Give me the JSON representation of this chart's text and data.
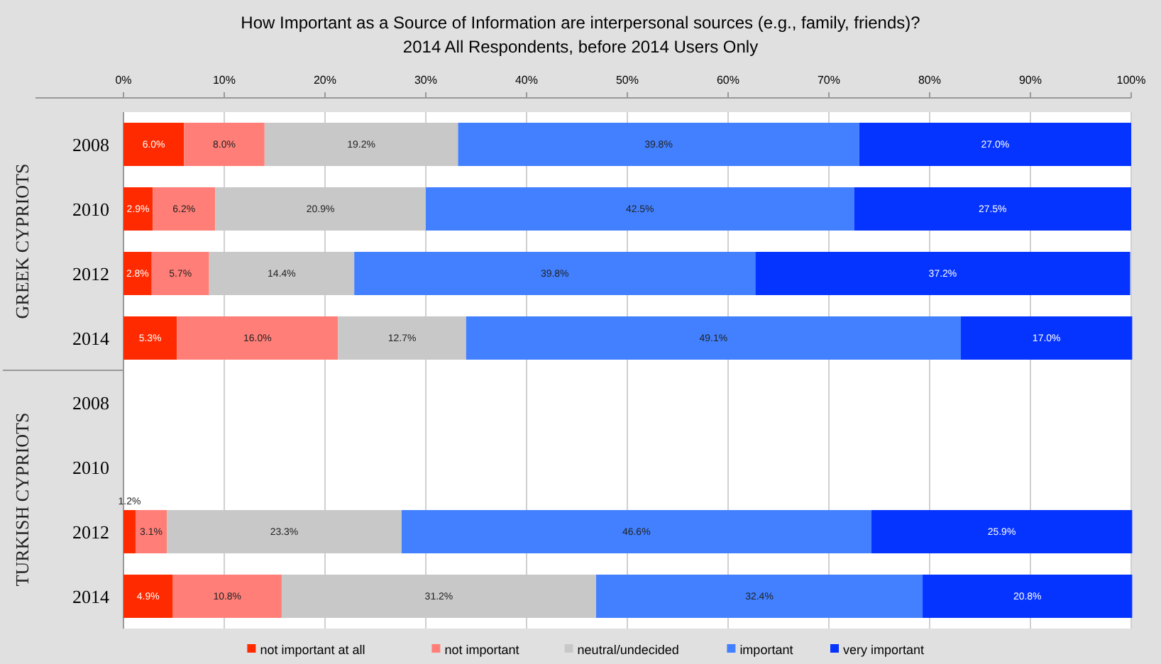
{
  "chart_data": {
    "type": "bar",
    "orientation": "horizontal",
    "stacked": true,
    "title": "How Important as a Source of Information are interpersonal sources (e.g., family, friends)?",
    "subtitle": "2014 All Respondents, before 2014 Users Only",
    "annotations": [
      "GREEK CYPRIOTS",
      "TURKISH CYPRIOTS"
    ],
    "categories": [
      "2008",
      "2010",
      "2012",
      "2014",
      "2008",
      "2010",
      "2012",
      "2014"
    ],
    "xlim": [
      0,
      100
    ],
    "xticks": [
      {
        "value": 0,
        "label": "0%"
      },
      {
        "value": 10,
        "label": "10%"
      },
      {
        "value": 20,
        "label": "20%"
      },
      {
        "value": 30,
        "label": "30%"
      },
      {
        "value": 40,
        "label": "40%"
      },
      {
        "value": 50,
        "label": "50%"
      },
      {
        "value": 60,
        "label": "60%"
      },
      {
        "value": 70,
        "label": "70%"
      },
      {
        "value": 80,
        "label": "80%"
      },
      {
        "value": 90,
        "label": "90%"
      },
      {
        "value": 100,
        "label": "100%"
      }
    ],
    "grid": "x",
    "legend": "bottom",
    "series": [
      {
        "name": "not important at all",
        "color": "#ff2a00",
        "values": [
          6.0,
          2.9,
          2.8,
          5.3,
          null,
          null,
          1.2,
          4.9
        ],
        "value_labels": [
          "6.0%",
          "2.9%",
          "2.8%",
          "5.3%",
          null,
          null,
          "1.2%",
          "4.9%"
        ]
      },
      {
        "name": "not important",
        "color": "#ff7f78",
        "values": [
          8.0,
          6.2,
          5.7,
          16.0,
          null,
          null,
          3.1,
          10.8
        ],
        "value_labels": [
          "8.0%",
          "6.2%",
          "5.7%",
          "16.0%",
          null,
          null,
          "3.1%",
          "10.8%"
        ]
      },
      {
        "name": "neutral/undecided",
        "color": "#c8c8c8",
        "values": [
          19.2,
          20.9,
          14.4,
          12.7,
          null,
          null,
          23.3,
          31.2
        ],
        "value_labels": [
          "19.2%",
          "20.9%",
          "14.4%",
          "12.7%",
          null,
          null,
          "23.3%",
          "31.2%"
        ]
      },
      {
        "name": "important",
        "color": "#4280ff",
        "values": [
          39.8,
          42.5,
          39.8,
          49.1,
          null,
          null,
          46.6,
          32.4
        ],
        "value_labels": [
          "39.8%",
          "42.5%",
          "39.8%",
          "49.1%",
          null,
          null,
          "46.6%",
          "32.4%"
        ]
      },
      {
        "name": "very important",
        "color": "#0533ff",
        "values": [
          27.0,
          27.5,
          37.2,
          17.0,
          null,
          null,
          25.9,
          20.8
        ],
        "value_labels": [
          "27.0%",
          "27.5%",
          "37.2%",
          "17.0%",
          null,
          null,
          "25.9%",
          "20.8%"
        ]
      }
    ]
  }
}
